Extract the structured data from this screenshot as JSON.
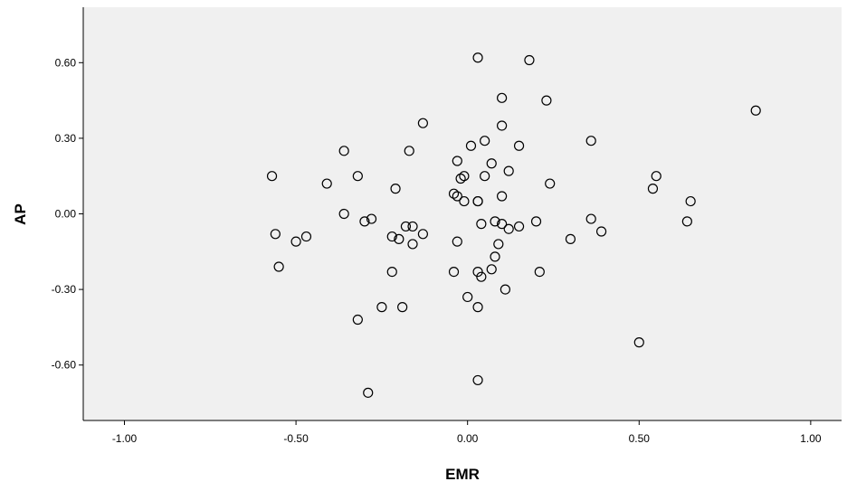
{
  "chart_data": {
    "type": "scatter",
    "title": "",
    "xlabel": "EMR",
    "ylabel": "AP",
    "xlim": [
      -1.12,
      1.09
    ],
    "ylim": [
      -0.82,
      0.82
    ],
    "x_ticks": [
      -1.0,
      -0.5,
      0.0,
      0.5,
      1.0
    ],
    "x_tick_labels": [
      "-1.00",
      "-0.50",
      "0.00",
      "0.50",
      "1.00"
    ],
    "y_ticks": [
      -0.6,
      -0.3,
      0.0,
      0.3,
      0.6
    ],
    "y_tick_labels": [
      "-0.60",
      "-0.30",
      "0.00",
      "0.30",
      "0.60"
    ],
    "grid": false,
    "legend": "none",
    "colors": {
      "plot_background": "#f0f0f0",
      "marker_edge": "#000000",
      "axis": "#000000"
    },
    "marker": "open-circle",
    "points": [
      {
        "x": 0.03,
        "y": 0.62
      },
      {
        "x": 0.18,
        "y": 0.61
      },
      {
        "x": 0.1,
        "y": 0.46
      },
      {
        "x": 0.23,
        "y": 0.45
      },
      {
        "x": 0.84,
        "y": 0.41
      },
      {
        "x": -0.13,
        "y": 0.36
      },
      {
        "x": 0.1,
        "y": 0.35
      },
      {
        "x": 0.05,
        "y": 0.29
      },
      {
        "x": 0.36,
        "y": 0.29
      },
      {
        "x": 0.01,
        "y": 0.27
      },
      {
        "x": 0.15,
        "y": 0.27
      },
      {
        "x": -0.36,
        "y": 0.25
      },
      {
        "x": -0.17,
        "y": 0.25
      },
      {
        "x": -0.03,
        "y": 0.21
      },
      {
        "x": 0.07,
        "y": 0.2
      },
      {
        "x": 0.12,
        "y": 0.17
      },
      {
        "x": -0.57,
        "y": 0.15
      },
      {
        "x": -0.32,
        "y": 0.15
      },
      {
        "x": -0.01,
        "y": 0.15
      },
      {
        "x": 0.05,
        "y": 0.15
      },
      {
        "x": 0.55,
        "y": 0.15
      },
      {
        "x": -0.02,
        "y": 0.14
      },
      {
        "x": -0.41,
        "y": 0.12
      },
      {
        "x": 0.24,
        "y": 0.12
      },
      {
        "x": -0.21,
        "y": 0.1
      },
      {
        "x": 0.54,
        "y": 0.1
      },
      {
        "x": -0.04,
        "y": 0.08
      },
      {
        "x": -0.03,
        "y": 0.07
      },
      {
        "x": 0.1,
        "y": 0.07
      },
      {
        "x": -0.01,
        "y": 0.05
      },
      {
        "x": 0.03,
        "y": 0.05
      },
      {
        "x": 0.03,
        "y": 0.05
      },
      {
        "x": 0.65,
        "y": 0.05
      },
      {
        "x": -0.36,
        "y": 0.0
      },
      {
        "x": -0.28,
        "y": -0.02
      },
      {
        "x": -0.3,
        "y": -0.03
      },
      {
        "x": 0.08,
        "y": -0.03
      },
      {
        "x": 0.2,
        "y": -0.03
      },
      {
        "x": 0.36,
        "y": -0.02
      },
      {
        "x": 0.64,
        "y": -0.03
      },
      {
        "x": 0.04,
        "y": -0.04
      },
      {
        "x": 0.1,
        "y": -0.04
      },
      {
        "x": -0.18,
        "y": -0.05
      },
      {
        "x": -0.16,
        "y": -0.05
      },
      {
        "x": 0.12,
        "y": -0.06
      },
      {
        "x": 0.15,
        "y": -0.05
      },
      {
        "x": 0.39,
        "y": -0.07
      },
      {
        "x": -0.56,
        "y": -0.08
      },
      {
        "x": -0.47,
        "y": -0.09
      },
      {
        "x": -0.22,
        "y": -0.09
      },
      {
        "x": -0.2,
        "y": -0.1
      },
      {
        "x": -0.13,
        "y": -0.08
      },
      {
        "x": -0.5,
        "y": -0.11
      },
      {
        "x": -0.16,
        "y": -0.12
      },
      {
        "x": -0.03,
        "y": -0.11
      },
      {
        "x": 0.09,
        "y": -0.12
      },
      {
        "x": 0.3,
        "y": -0.1
      },
      {
        "x": 0.08,
        "y": -0.17
      },
      {
        "x": -0.55,
        "y": -0.21
      },
      {
        "x": -0.22,
        "y": -0.23
      },
      {
        "x": -0.04,
        "y": -0.23
      },
      {
        "x": 0.03,
        "y": -0.23
      },
      {
        "x": 0.07,
        "y": -0.22
      },
      {
        "x": 0.21,
        "y": -0.23
      },
      {
        "x": 0.04,
        "y": -0.25
      },
      {
        "x": 0.11,
        "y": -0.3
      },
      {
        "x": 0.0,
        "y": -0.33
      },
      {
        "x": -0.25,
        "y": -0.37
      },
      {
        "x": -0.19,
        "y": -0.37
      },
      {
        "x": 0.03,
        "y": -0.37
      },
      {
        "x": -0.32,
        "y": -0.42
      },
      {
        "x": 0.5,
        "y": -0.51
      },
      {
        "x": 0.03,
        "y": -0.66
      },
      {
        "x": -0.29,
        "y": -0.71
      }
    ]
  }
}
